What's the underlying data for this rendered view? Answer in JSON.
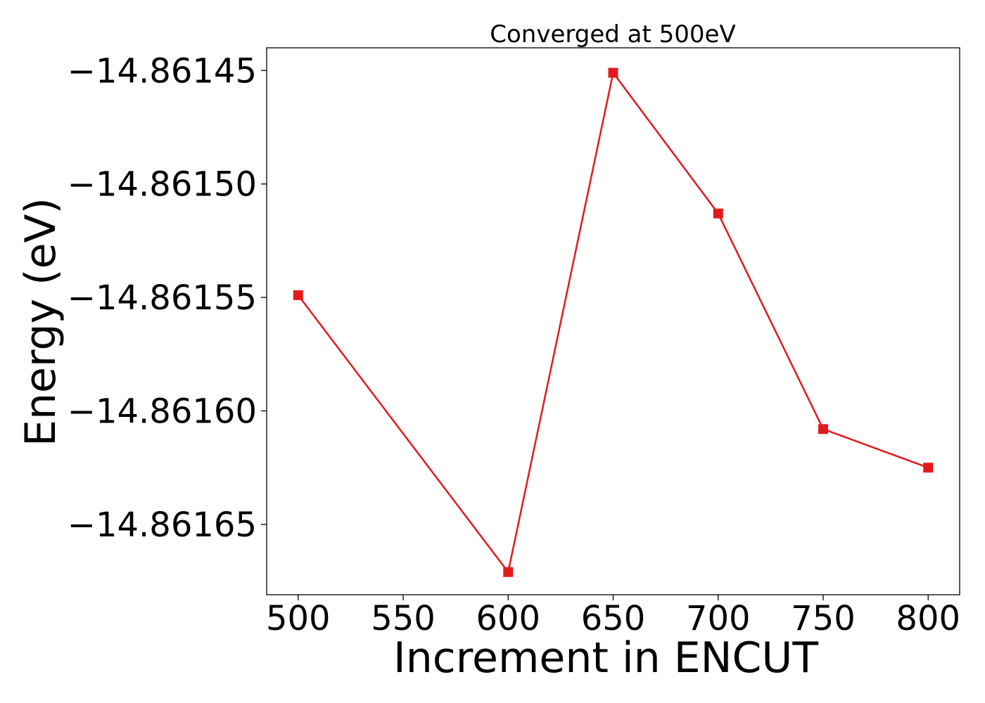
{
  "chart_data": {
    "type": "line",
    "title": "Converged at 500eV",
    "xlabel": "Increment in ENCUT",
    "ylabel": "Energy (eV)",
    "x": [
      500,
      600,
      650,
      700,
      750,
      800
    ],
    "series": [
      {
        "values": [
          -14.861549,
          -14.861671,
          -14.861451,
          -14.861513,
          -14.861608,
          -14.861625
        ],
        "color": "#e31a1c",
        "marker": "square"
      }
    ],
    "xticks": [
      500,
      550,
      600,
      650,
      700,
      750,
      800
    ],
    "xtick_labels": [
      "500",
      "550",
      "600",
      "650",
      "700",
      "750",
      "800"
    ],
    "yticks": [
      -14.86145,
      -14.8615,
      -14.86155,
      -14.8616,
      -14.86165
    ],
    "ytick_labels": [
      "−14.86145",
      "−14.86150",
      "−14.86155",
      "−14.86160",
      "−14.86165"
    ],
    "xlim": [
      485,
      815
    ],
    "ylim": [
      -14.861681,
      -14.86144
    ],
    "grid": false
  }
}
